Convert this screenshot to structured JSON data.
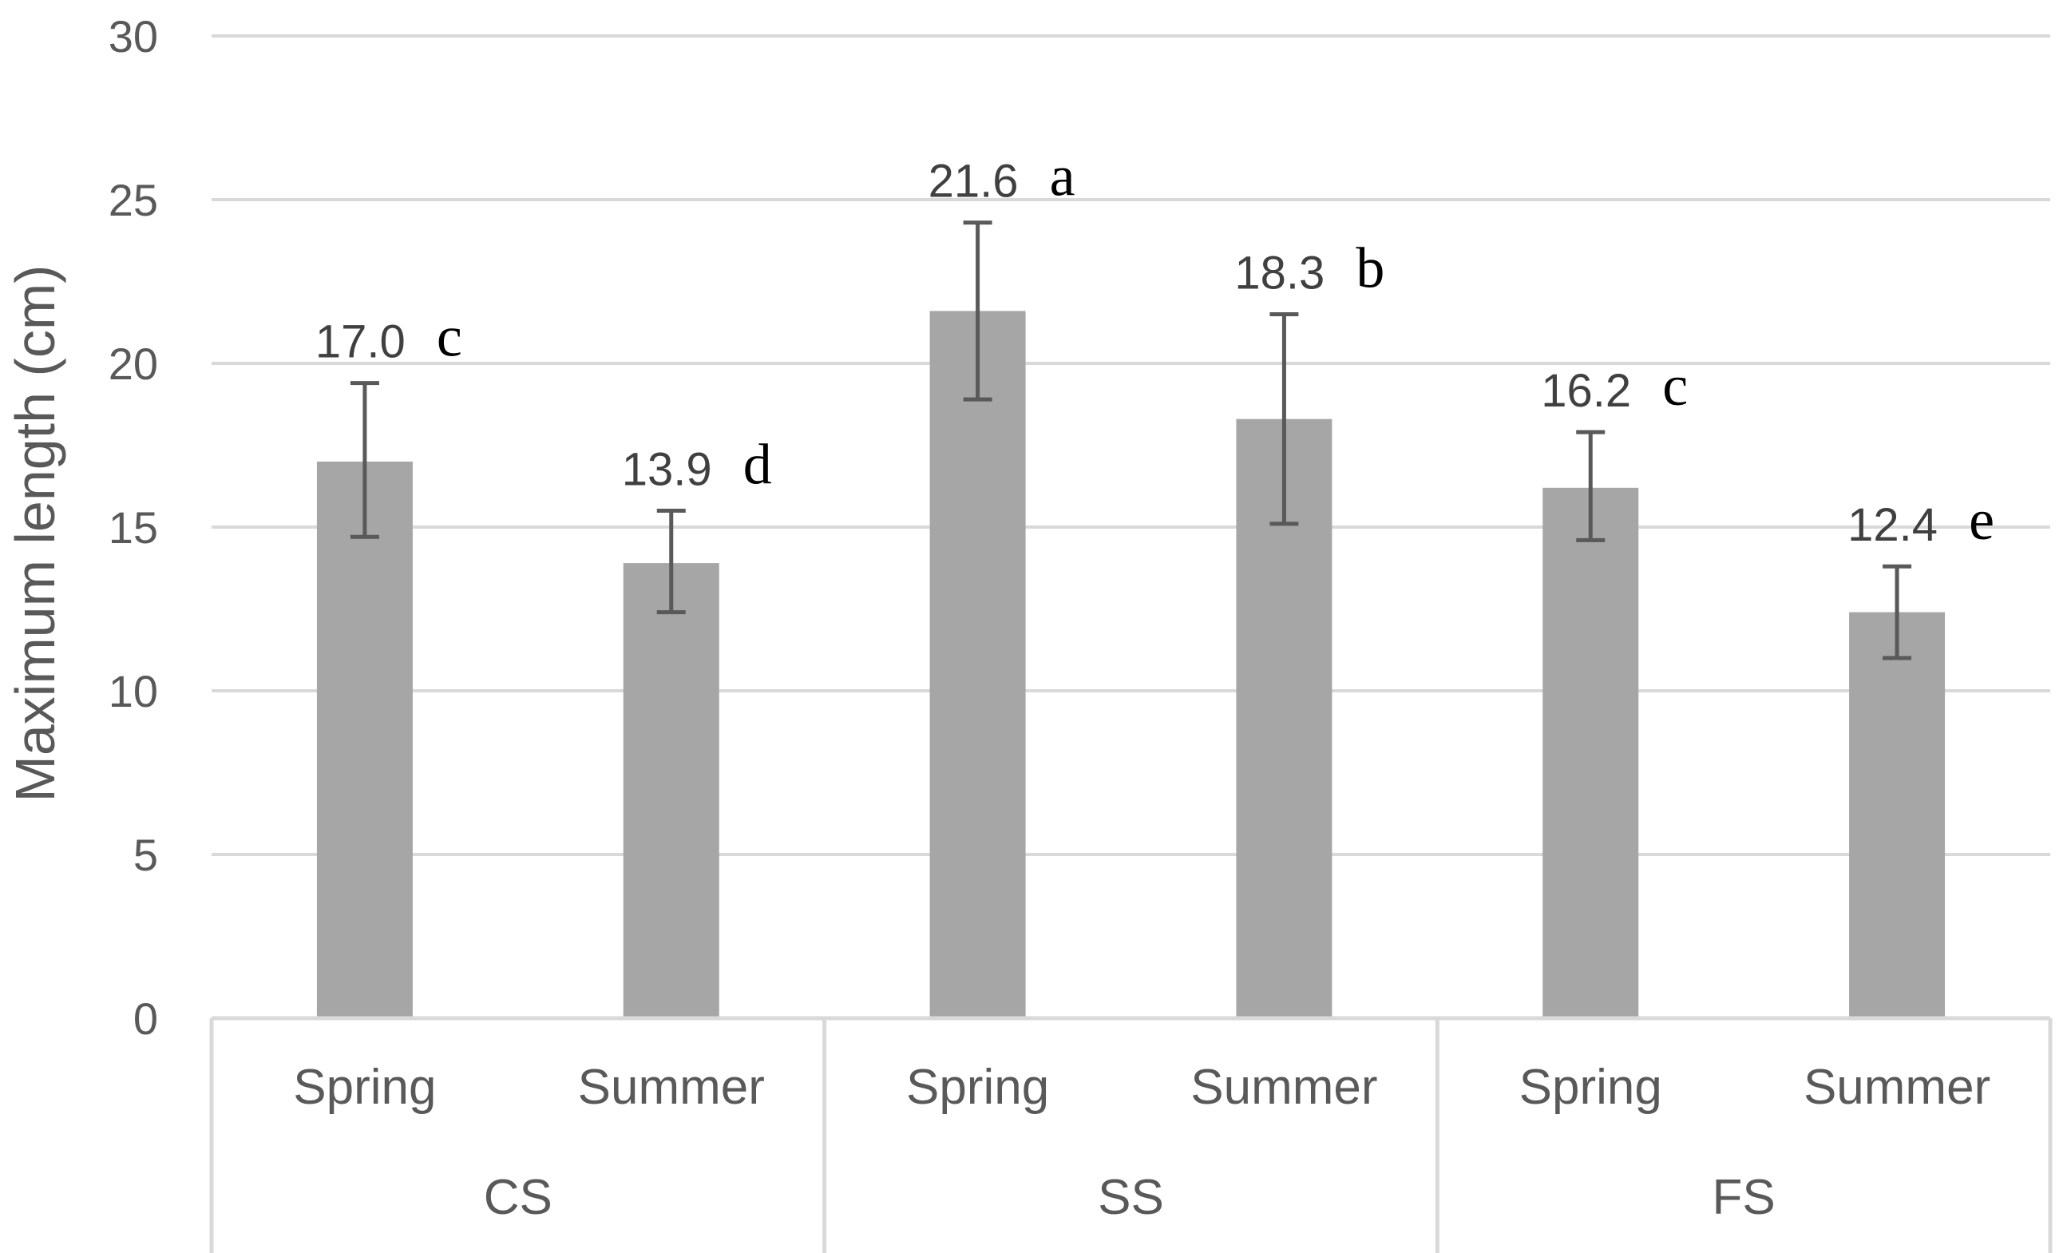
{
  "chart_data": {
    "type": "bar",
    "title": "",
    "xlabel": "",
    "ylabel": "Maximum length (cm)",
    "ylim": [
      0,
      30
    ],
    "yticks": [
      0,
      5,
      10,
      15,
      20,
      25,
      30
    ],
    "grid": true,
    "groups": [
      {
        "name": "CS",
        "bars": [
          {
            "category": "Spring",
            "value": 17.0,
            "label": "17.0",
            "letter": "c",
            "err_low": 14.7,
            "err_high": 19.4
          },
          {
            "category": "Summer",
            "value": 13.9,
            "label": "13.9",
            "letter": "d",
            "err_low": 12.4,
            "err_high": 15.5
          }
        ]
      },
      {
        "name": "SS",
        "bars": [
          {
            "category": "Spring",
            "value": 21.6,
            "label": "21.6",
            "letter": "a",
            "err_low": 18.9,
            "err_high": 24.3
          },
          {
            "category": "Summer",
            "value": 18.3,
            "label": "18.3",
            "letter": "b",
            "err_low": 15.1,
            "err_high": 21.5
          }
        ]
      },
      {
        "name": "FS",
        "bars": [
          {
            "category": "Spring",
            "value": 16.2,
            "label": "16.2",
            "letter": "c",
            "err_low": 14.6,
            "err_high": 17.9
          },
          {
            "category": "Summer",
            "value": 12.4,
            "label": "12.4",
            "letter": "e",
            "err_low": 11.0,
            "err_high": 13.8
          }
        ]
      }
    ],
    "colors": {
      "bar": "#a6a6a6",
      "error_bar": "#595959",
      "grid": "#d9d9d9",
      "axis": "#d9d9d9"
    }
  }
}
